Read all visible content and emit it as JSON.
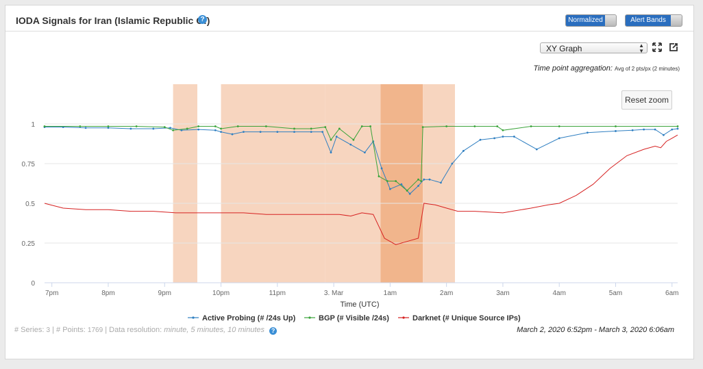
{
  "header": {
    "title": "IODA Signals for Iran (Islamic Republic Of)",
    "help": "?",
    "toggle_normalized": "Normalized",
    "toggle_alert_bands": "Alert Bands"
  },
  "controls": {
    "graph_type": "XY Graph",
    "aggregation_label": "Time point aggregation:",
    "aggregation_value": "Avg of 2 pts/px (2 minutes)",
    "reset_zoom": "Reset zoom"
  },
  "colors": {
    "active_probing": "#2f7fc1",
    "bgp": "#3aa33a",
    "darknet": "#d62020",
    "band_light": "#f7d5bf",
    "band_dark": "#f1b58c"
  },
  "chart_data": {
    "type": "line",
    "xlabel": "Time (UTC)",
    "ylabel": "",
    "title": "",
    "x_ticks": [
      "7pm",
      "8pm",
      "9pm",
      "10pm",
      "11pm",
      "3. Mar",
      "1am",
      "2am",
      "3am",
      "4am",
      "5am",
      "6am"
    ],
    "x_tick_hours": [
      19,
      20,
      21,
      22,
      23,
      24,
      25,
      26,
      27,
      28,
      29,
      30
    ],
    "y_ticks": [
      "0",
      "0.25",
      "0.5",
      "0.75",
      "1"
    ],
    "y_tick_values": [
      0,
      0.25,
      0.5,
      0.75,
      1
    ],
    "xlim_hours": [
      18.87,
      30.1
    ],
    "ylim": [
      0,
      1.25
    ],
    "grid": true,
    "legend_position": "bottom-center",
    "alert_bands_hours": [
      {
        "start": 21.15,
        "end": 21.58,
        "level": "light"
      },
      {
        "start": 22.0,
        "end": 23.85,
        "level": "light"
      },
      {
        "start": 23.85,
        "end": 24.83,
        "level": "light"
      },
      {
        "start": 24.83,
        "end": 25.58,
        "level": "dark"
      },
      {
        "start": 25.58,
        "end": 26.15,
        "level": "light"
      }
    ],
    "series": [
      {
        "name": "Active Probing (# /24s Up)",
        "x_hours": [
          18.87,
          19.2,
          19.6,
          20.0,
          20.4,
          20.8,
          21.1,
          21.3,
          21.6,
          21.9,
          22.0,
          22.2,
          22.4,
          22.7,
          23.0,
          23.3,
          23.6,
          23.8,
          23.95,
          24.05,
          24.3,
          24.55,
          24.7,
          24.85,
          25.0,
          25.2,
          25.35,
          25.5,
          25.6,
          25.7,
          25.9,
          26.1,
          26.3,
          26.6,
          26.85,
          27.0,
          27.2,
          27.6,
          28.0,
          28.5,
          29.0,
          29.3,
          29.5,
          29.7,
          29.85,
          30.0,
          30.1
        ],
        "values": [
          0.98,
          0.98,
          0.975,
          0.975,
          0.97,
          0.97,
          0.975,
          0.96,
          0.965,
          0.96,
          0.95,
          0.935,
          0.95,
          0.95,
          0.95,
          0.95,
          0.95,
          0.95,
          0.82,
          0.92,
          0.87,
          0.82,
          0.89,
          0.72,
          0.59,
          0.62,
          0.56,
          0.61,
          0.65,
          0.65,
          0.63,
          0.75,
          0.83,
          0.9,
          0.91,
          0.92,
          0.92,
          0.84,
          0.91,
          0.945,
          0.955,
          0.96,
          0.965,
          0.965,
          0.93,
          0.965,
          0.97
        ]
      },
      {
        "name": "BGP (# Visible /24s)",
        "x_hours": [
          18.87,
          19.5,
          20.0,
          20.5,
          21.0,
          21.15,
          21.4,
          21.6,
          21.9,
          22.0,
          22.3,
          22.8,
          23.3,
          23.6,
          23.85,
          23.95,
          24.1,
          24.35,
          24.5,
          24.65,
          24.8,
          24.95,
          25.1,
          25.3,
          25.5,
          25.55,
          25.58,
          26.0,
          26.5,
          26.9,
          27.0,
          27.5,
          28.0,
          29.0,
          30.1
        ],
        "values": [
          0.985,
          0.985,
          0.985,
          0.985,
          0.98,
          0.96,
          0.97,
          0.985,
          0.985,
          0.97,
          0.985,
          0.985,
          0.97,
          0.97,
          0.98,
          0.9,
          0.97,
          0.9,
          0.985,
          0.985,
          0.67,
          0.64,
          0.64,
          0.58,
          0.65,
          0.64,
          0.98,
          0.985,
          0.985,
          0.985,
          0.96,
          0.985,
          0.985,
          0.985,
          0.985
        ]
      },
      {
        "name": "Darknet (# Unique Source IPs)",
        "x_hours": [
          18.87,
          19.2,
          19.6,
          20.0,
          20.4,
          20.8,
          21.2,
          21.6,
          22.0,
          22.4,
          22.8,
          23.2,
          23.6,
          23.9,
          24.1,
          24.3,
          24.5,
          24.7,
          24.9,
          25.1,
          25.3,
          25.5,
          25.6,
          25.8,
          26.0,
          26.2,
          26.5,
          27.0,
          27.5,
          27.8,
          28.0,
          28.3,
          28.6,
          28.9,
          29.2,
          29.5,
          29.7,
          29.8,
          29.9,
          30.0,
          30.1
        ],
        "values": [
          0.5,
          0.47,
          0.46,
          0.46,
          0.45,
          0.45,
          0.44,
          0.44,
          0.44,
          0.44,
          0.43,
          0.43,
          0.43,
          0.43,
          0.43,
          0.42,
          0.44,
          0.43,
          0.28,
          0.24,
          0.26,
          0.28,
          0.5,
          0.49,
          0.47,
          0.45,
          0.45,
          0.44,
          0.47,
          0.49,
          0.5,
          0.55,
          0.62,
          0.72,
          0.8,
          0.84,
          0.86,
          0.85,
          0.89,
          0.91,
          0.93
        ]
      }
    ]
  },
  "footer": {
    "series_label": "# Series:",
    "series_count": "3",
    "points_label": "# Points:",
    "points_count": "1769",
    "resolution_label": "Data resolution:",
    "resolution_value": "minute, 5 minutes, 10 minutes",
    "date_range": "March 2, 2020 6:52pm - March 3, 2020 6:06am"
  }
}
